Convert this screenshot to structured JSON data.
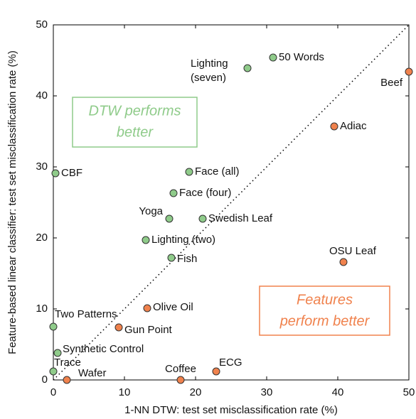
{
  "chart_data": {
    "type": "scatter",
    "xlabel": "1-NN DTW: test set misclassification rate (%)",
    "ylabel": "Feature-based linear classifier: test set misclassification rate (%)",
    "xlim": [
      0,
      50
    ],
    "ylim": [
      0,
      50
    ],
    "xticks": [
      0,
      10,
      20,
      30,
      40,
      50
    ],
    "yticks": [
      0,
      10,
      20,
      30,
      40,
      50
    ],
    "series": [
      {
        "color": "#8fcb8a",
        "labels": [
          "50 Words",
          [
            "Lighting",
            "(seven)"
          ],
          "CBF",
          "Face (all)",
          "Face (four)",
          "Yoga",
          "Swedish Leaf",
          "Lighting (two)",
          "Fish",
          "Two Patterns",
          "Synthetic Control",
          "Trace"
        ],
        "x": [
          30.9,
          27.3,
          0.3,
          19.1,
          16.9,
          16.3,
          21.0,
          13.0,
          16.6,
          0,
          0.6,
          0
        ],
        "values": [
          45.4,
          43.9,
          29.1,
          29.3,
          26.3,
          22.7,
          22.7,
          19.7,
          17.2,
          7.5,
          3.8,
          1.2
        ]
      },
      {
        "color": "#f0824d",
        "labels": [
          "Beef",
          "Adiac",
          "OSU Leaf",
          "Olive Oil",
          "Gun Point",
          "Wafer",
          "Coffee",
          "ECG"
        ],
        "x": [
          50,
          39.5,
          40.8,
          13.2,
          9.2,
          1.9,
          17.9,
          22.9
        ],
        "values": [
          43.4,
          35.7,
          16.6,
          10.1,
          7.4,
          0,
          0,
          1.2
        ]
      }
    ],
    "annotations": [
      {
        "lines": [
          "DTW performs",
          "better"
        ],
        "color": "#8fcb8a"
      },
      {
        "lines": [
          "Features",
          "perform better"
        ],
        "color": "#f0824d"
      }
    ]
  }
}
